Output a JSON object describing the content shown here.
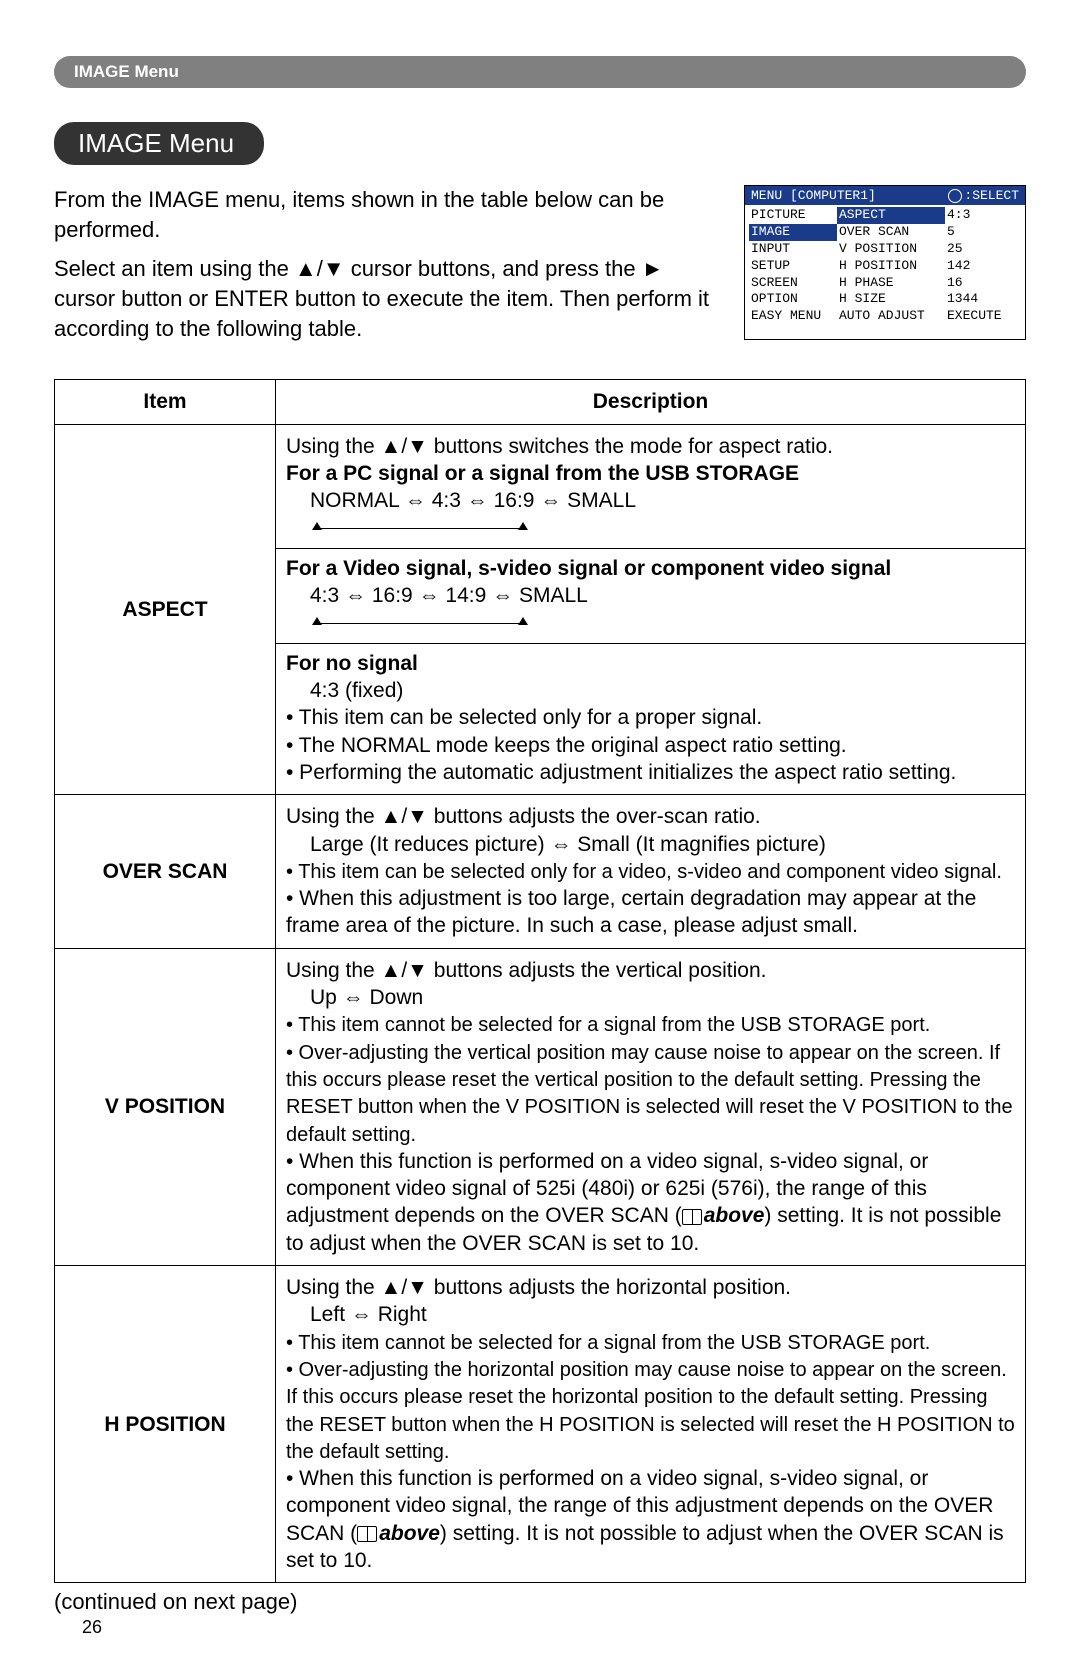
{
  "header": "IMAGE Menu",
  "title": "IMAGE Menu",
  "intro": {
    "p1": "From the IMAGE menu, items shown in the table below can be performed.",
    "p2": "Select an item using the ▲/▼ cursor buttons, and press the ► cursor button or ENTER button to execute the item. Then perform it according to the following table."
  },
  "menuShot": {
    "titlebar_left": "MENU [COMPUTER1]",
    "titlebar_right": ":SELECT",
    "categories": [
      "PICTURE",
      "IMAGE",
      "INPUT",
      "SETUP",
      "SCREEN",
      "OPTION",
      "EASY MENU"
    ],
    "selected_category_index": 1,
    "items": [
      "ASPECT",
      "OVER SCAN",
      "V POSITION",
      "H POSITION",
      "H PHASE",
      "H SIZE",
      "AUTO ADJUST"
    ],
    "values": [
      "4:3",
      "5",
      "25",
      "142",
      "16",
      "1344",
      "EXECUTE"
    ],
    "selected_bg": "#1a3a8a",
    "colors": {
      "titlebar_bg": "#1a3a8a",
      "text": "#000000"
    }
  },
  "table": {
    "head_item": "Item",
    "head_desc": "Description",
    "rows": {
      "aspect": {
        "name": "ASPECT",
        "l1": "Using the ▲/▼ buttons switches the mode for aspect ratio.",
        "pc_b": "For a PC signal or a signal from the USB STORAGE",
        "pc_vals": "NORMAL ⇔ 4:3 ⇔ 16:9 ⇔ SMALL",
        "vid_b": "For a Video signal, s-video signal or component video signal",
        "vid_vals": "4:3 ⇔ 16:9 ⇔ 14:9 ⇔ SMALL",
        "no_b": "For no signal",
        "no_vals": "4:3 (fixed)",
        "b1": "• This item can be selected only for a proper signal.",
        "b2": "• The NORMAL mode keeps the original aspect ratio setting.",
        "b3": "• Performing the automatic adjustment initializes the aspect ratio setting."
      },
      "overscan": {
        "name": "OVER SCAN",
        "l1": "Using the ▲/▼ buttons adjusts the over-scan ratio.",
        "l2": "Large (It reduces picture) ⇔ Small (It magnifies picture)",
        "b1": "• This item can be selected only for a video, s-video and component video signal.",
        "b2": "• When this adjustment is too large, certain degradation may appear at the frame area of the picture. In such a case, please adjust small."
      },
      "vpos": {
        "name": "V POSITION",
        "l1": "Using the ▲/▼ buttons adjusts the vertical position.",
        "l2": "Up ⇔ Down",
        "b1": "• This item cannot be selected for a signal from the USB STORAGE port.",
        "b2": "• Over-adjusting the vertical position may cause noise to appear on the screen. If this occurs please reset the vertical position to the default setting. Pressing the RESET button when the V POSITION is selected will reset the V POSITION to the default setting.",
        "b3a": "• When this function is performed on a video signal, s-video signal, or component video signal of 525i (480i) or 625i (576i), the range of this adjustment depends on the OVER SCAN (",
        "above": "above",
        "b3b": ") setting. It is not possible to adjust when the OVER SCAN is set to 10."
      },
      "hpos": {
        "name": "H POSITION",
        "l1": "Using the ▲/▼ buttons adjusts the horizontal position.",
        "l2": "Left ⇔ Right",
        "b1": "• This item cannot be selected for a signal from the USB STORAGE port.",
        "b2": "• Over-adjusting the horizontal position may cause noise to appear on the screen. If this occurs please reset the horizontal position to the default setting. Pressing the RESET button when the H POSITION is selected will reset the H POSITION to the default setting.",
        "b3a": "• When this function is performed on a video signal, s-video signal, or component video signal, the range of this adjustment depends on the OVER SCAN (",
        "above": "above",
        "b3b": ") setting. It is not possible to adjust when the OVER SCAN is set to 10."
      }
    }
  },
  "continued": "(continued on next page)",
  "page_number": "26"
}
